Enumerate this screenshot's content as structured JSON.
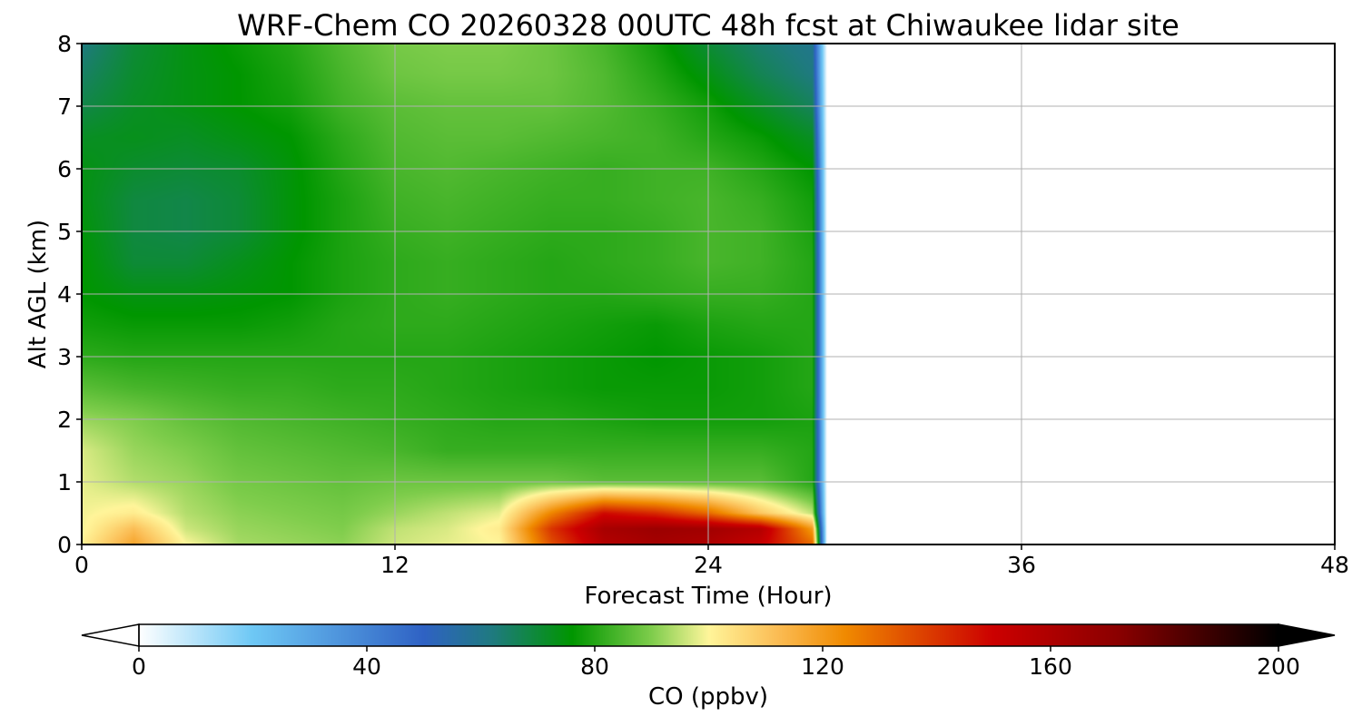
{
  "chart_data": {
    "type": "heatmap",
    "title": "WRF-Chem CO  20260328 00UTC 48h fcst at Chiwaukee lidar site",
    "xlabel": "Forecast Time (Hour)",
    "ylabel": "Alt AGL (km)",
    "xlim": [
      0,
      48
    ],
    "ylim": [
      0,
      8
    ],
    "x_ticks": [
      "0",
      "12",
      "24",
      "36",
      "48"
    ],
    "y_ticks": [
      "0",
      "1",
      "2",
      "3",
      "4",
      "5",
      "6",
      "7",
      "8"
    ],
    "grid": true,
    "data_end_hour": 28,
    "colorbar": {
      "label": "CO  (ppbv)",
      "range": [
        0,
        200
      ],
      "ticks": [
        "0",
        "40",
        "80",
        "120",
        "160",
        "200"
      ],
      "extend": "both",
      "stops": [
        {
          "v": 0,
          "c": "#ffffff"
        },
        {
          "v": 20,
          "c": "#6ec8f5"
        },
        {
          "v": 50,
          "c": "#2f62c4"
        },
        {
          "v": 62,
          "c": "#1f7a80"
        },
        {
          "v": 76,
          "c": "#009600"
        },
        {
          "v": 90,
          "c": "#7fcd4c"
        },
        {
          "v": 98,
          "c": "#e6ee8c"
        },
        {
          "v": 100,
          "c": "#fff59a"
        },
        {
          "v": 112,
          "c": "#fbbd55"
        },
        {
          "v": 124,
          "c": "#f08a00"
        },
        {
          "v": 138,
          "c": "#dc3f00"
        },
        {
          "v": 150,
          "c": "#cc0000"
        },
        {
          "v": 172,
          "c": "#8a0000"
        },
        {
          "v": 200,
          "c": "#000000"
        }
      ]
    },
    "hours": [
      0,
      2,
      4,
      6,
      8,
      10,
      12,
      14,
      16,
      18,
      20,
      22,
      24,
      26,
      28
    ],
    "altitudes_km": [
      0,
      0.25,
      0.5,
      1,
      1.5,
      2,
      2.5,
      3,
      3.5,
      4,
      4.5,
      5,
      5.5,
      6,
      6.5,
      7,
      7.5,
      8
    ],
    "values_ppbv": [
      [
        101,
        118,
        100,
        93,
        92,
        91,
        96,
        98,
        100,
        135,
        158,
        163,
        160,
        152,
        130
      ],
      [
        99,
        112,
        96,
        92,
        91,
        90,
        95,
        97,
        102,
        140,
        162,
        166,
        164,
        158,
        120
      ],
      [
        99,
        102,
        94,
        91,
        90,
        89,
        92,
        95,
        98,
        125,
        148,
        142,
        130,
        110,
        95
      ],
      [
        98,
        94,
        92,
        89,
        88,
        87,
        88,
        88,
        88,
        88,
        86,
        86,
        86,
        86,
        80
      ],
      [
        97,
        92,
        90,
        87,
        86,
        85,
        84,
        82,
        82,
        82,
        82,
        82,
        82,
        82,
        80
      ],
      [
        92,
        90,
        87,
        85,
        84,
        83,
        82,
        81,
        80,
        80,
        79,
        78,
        78,
        78,
        79
      ],
      [
        86,
        84,
        83,
        82,
        82,
        81,
        81,
        80,
        79,
        78,
        77,
        77,
        77,
        78,
        80
      ],
      [
        81,
        80,
        80,
        80,
        80,
        80,
        80,
        80,
        79,
        78,
        77,
        76,
        77,
        78,
        80
      ],
      [
        78,
        77,
        77,
        77,
        78,
        80,
        81,
        81,
        80,
        79,
        78,
        77,
        79,
        80,
        80
      ],
      [
        76,
        74,
        74,
        75,
        76,
        79,
        81,
        82,
        81,
        80,
        80,
        81,
        82,
        82,
        80
      ],
      [
        76,
        70,
        70,
        73,
        76,
        79,
        81,
        82,
        81,
        80,
        81,
        82,
        84,
        83,
        80
      ],
      [
        75,
        69,
        68,
        70,
        75,
        79,
        82,
        83,
        82,
        81,
        81,
        82,
        84,
        83,
        79
      ],
      [
        74,
        69,
        68,
        70,
        75,
        79,
        83,
        84,
        83,
        82,
        82,
        83,
        84,
        82,
        78
      ],
      [
        74,
        71,
        70,
        71,
        75,
        80,
        84,
        85,
        84,
        83,
        82,
        83,
        83,
        80,
        76
      ],
      [
        72,
        73,
        72,
        74,
        76,
        81,
        85,
        86,
        86,
        85,
        84,
        83,
        80,
        77,
        72
      ],
      [
        68,
        72,
        74,
        76,
        78,
        83,
        86,
        87,
        87,
        87,
        85,
        82,
        78,
        72,
        66
      ],
      [
        65,
        71,
        74,
        76,
        79,
        84,
        88,
        89,
        89,
        88,
        85,
        80,
        74,
        67,
        62
      ],
      [
        62,
        70,
        74,
        77,
        80,
        85,
        89,
        90,
        90,
        88,
        84,
        78,
        70,
        64,
        60
      ]
    ]
  }
}
